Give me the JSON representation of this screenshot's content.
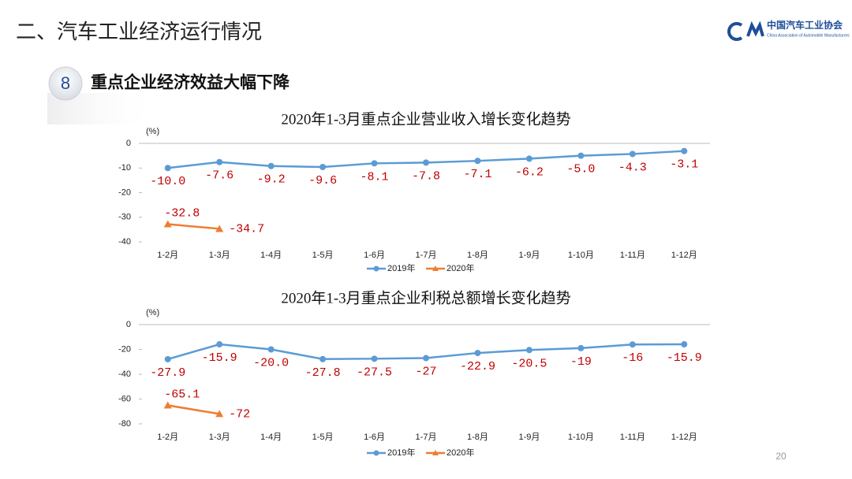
{
  "header": {
    "title": "二、汽车工业经济运行情况",
    "logo_name": "中国汽车工业协会",
    "logo_en": "China Association of Automobile Manufacturers"
  },
  "section": {
    "number": "8",
    "title": "重点企业经济效益大幅下降"
  },
  "page_number": "20",
  "chart_data": [
    {
      "type": "line",
      "title": "2020年1-3月重点企业营业收入增长变化趋势",
      "y_label": "(%)",
      "categories": [
        "1-2月",
        "1-3月",
        "1-4月",
        "1-5月",
        "1-6月",
        "1-7月",
        "1-8月",
        "1-9月",
        "1-10月",
        "1-11月",
        "1-12月"
      ],
      "series": [
        {
          "name": "2019年",
          "color": "#5b9bd5",
          "values": [
            -10.0,
            -7.6,
            -9.2,
            -9.6,
            -8.1,
            -7.8,
            -7.1,
            -6.2,
            -5.0,
            -4.3,
            -3.1
          ],
          "value_labels": [
            "-10.0",
            "-7.6",
            "-9.2",
            "-9.6",
            "-8.1",
            "-7.8",
            "-7.1",
            "-6.2",
            "-5.0",
            "-4.3",
            "-3.1"
          ]
        },
        {
          "name": "2020年",
          "color": "#ed7d31",
          "values": [
            -32.8,
            -34.7,
            null,
            null,
            null,
            null,
            null,
            null,
            null,
            null,
            null
          ],
          "value_labels": [
            "-32.8",
            "-34.7",
            null,
            null,
            null,
            null,
            null,
            null,
            null,
            null,
            null
          ]
        }
      ],
      "ylim": [
        -40,
        0
      ],
      "yticks": [
        0,
        -10,
        -20,
        -30,
        -40
      ],
      "legend": "bottom"
    },
    {
      "type": "line",
      "title": "2020年1-3月重点企业利税总额增长变化趋势",
      "y_label": "(%)",
      "categories": [
        "1-2月",
        "1-3月",
        "1-4月",
        "1-5月",
        "1-6月",
        "1-7月",
        "1-8月",
        "1-9月",
        "1-10月",
        "1-11月",
        "1-12月"
      ],
      "series": [
        {
          "name": "2019年",
          "color": "#5b9bd5",
          "values": [
            -27.9,
            -15.9,
            -20.0,
            -27.8,
            -27.5,
            -27,
            -22.9,
            -20.5,
            -19,
            -16,
            -15.9
          ],
          "value_labels": [
            "-27.9",
            "-15.9",
            "-20.0",
            "-27.8",
            "-27.5",
            "-27",
            "-22.9",
            "-20.5",
            "-19",
            "-16",
            "-15.9"
          ]
        },
        {
          "name": "2020年",
          "color": "#ed7d31",
          "values": [
            -65.1,
            -72,
            null,
            null,
            null,
            null,
            null,
            null,
            null,
            null,
            null
          ],
          "value_labels": [
            "-65.1",
            "-72",
            null,
            null,
            null,
            null,
            null,
            null,
            null,
            null,
            null
          ]
        }
      ],
      "ylim": [
        -80,
        0
      ],
      "yticks": [
        0,
        -20,
        -40,
        -60,
        -80
      ],
      "legend": "bottom"
    }
  ]
}
